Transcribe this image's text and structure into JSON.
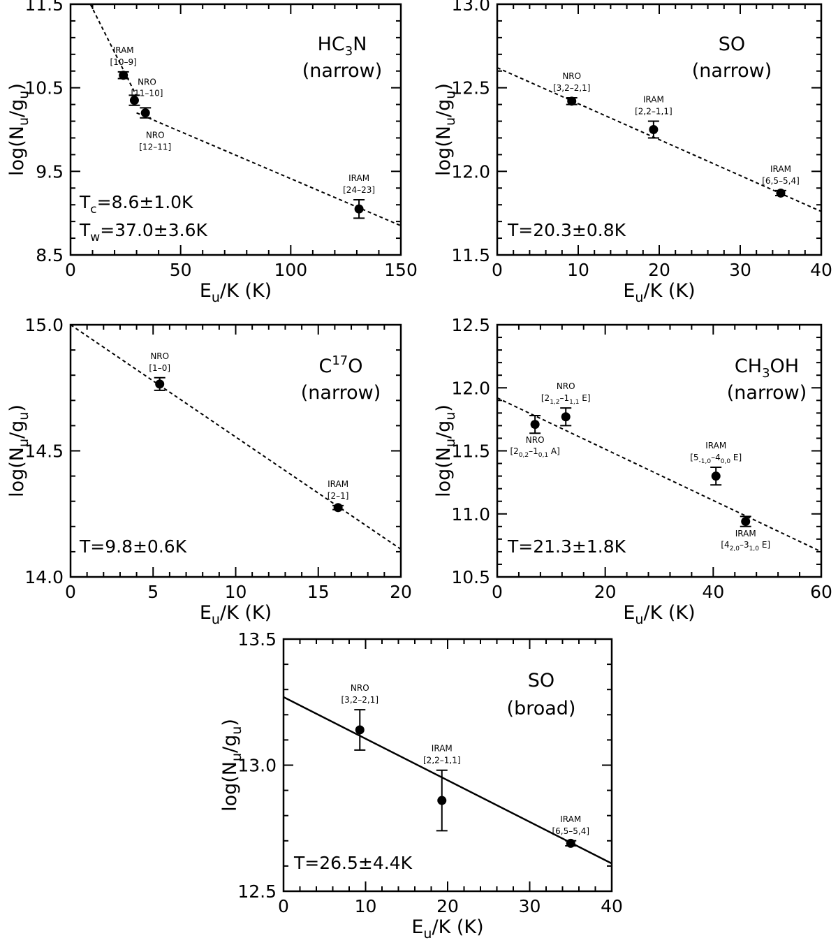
{
  "chart_data": [
    {
      "type": "scatter",
      "molecule": {
        "main": "HC",
        "sub": "3",
        "rest": "N"
      },
      "component": "(narrow)",
      "xlabel": {
        "main": "E",
        "sub": "u",
        "rest": "/K (K)"
      },
      "ylabel": {
        "pre": "log(N",
        "sub1": "u",
        "mid": "/g",
        "sub2": "u",
        "post": ")"
      },
      "xlim": [
        0,
        150
      ],
      "ylim": [
        8.5,
        11.5
      ],
      "xticks": [
        0,
        50,
        100,
        150
      ],
      "xtick_labels": [
        "0",
        "50",
        "100",
        "150"
      ],
      "yticks": [
        8.5,
        9.5,
        10.5,
        11.5
      ],
      "ytick_labels": [
        "8.5",
        "9.5",
        "10.5",
        "11.5"
      ],
      "temps": [
        {
          "main": "T",
          "sub": "c",
          "rest": "=8.6±1.0K"
        },
        {
          "main": "T",
          "sub": "w",
          "rest": "=37.0±3.6K"
        }
      ],
      "fits": [
        {
          "x": [
            9,
            30
          ],
          "y": [
            11.5,
            10.4
          ],
          "style": "dashed"
        },
        {
          "x": [
            30,
            150
          ],
          "y": [
            10.2,
            8.85
          ],
          "style": "dashed"
        }
      ],
      "points": [
        {
          "x": 24,
          "y": 10.65,
          "err": 0.04,
          "label": {
            "top": "IRAM",
            "bottom": "[10–9]"
          }
        },
        {
          "x": 29,
          "y": 10.35,
          "err": 0.06,
          "label": {
            "top": "NRO",
            "bottom": "[11–10]"
          }
        },
        {
          "x": 34,
          "y": 10.2,
          "err": 0.06,
          "label": {
            "top": "NRO",
            "bottom": "[12–11]"
          }
        },
        {
          "x": 131,
          "y": 9.05,
          "err": 0.11,
          "label": {
            "top": "IRAM",
            "bottom": "[24–23]"
          }
        }
      ]
    },
    {
      "type": "scatter",
      "molecule": {
        "main": "SO",
        "sub": "",
        "rest": ""
      },
      "component": "(narrow)",
      "xlabel": {
        "main": "E",
        "sub": "u",
        "rest": "/K (K)"
      },
      "ylabel": {
        "pre": "log(N",
        "sub1": "u",
        "mid": "/g",
        "sub2": "u",
        "post": ")"
      },
      "xlim": [
        0,
        40
      ],
      "ylim": [
        11.5,
        13.0
      ],
      "xticks": [
        0,
        10,
        20,
        30,
        40
      ],
      "xtick_labels": [
        "0",
        "10",
        "20",
        "30",
        "40"
      ],
      "yticks": [
        11.5,
        12.0,
        12.5,
        13.0
      ],
      "ytick_labels": [
        "11.5",
        "12.0",
        "12.5",
        "13.0"
      ],
      "temps": [
        {
          "main": "T",
          "sub": "",
          "rest": "=20.3±0.8K"
        }
      ],
      "fits": [
        {
          "x": [
            0,
            40
          ],
          "y": [
            12.62,
            11.76
          ],
          "style": "dashed"
        }
      ],
      "points": [
        {
          "x": 9.2,
          "y": 12.42,
          "err": 0.02,
          "label": {
            "top": "NRO",
            "bottom": "[3,2–2,1]"
          }
        },
        {
          "x": 19.3,
          "y": 12.25,
          "err": 0.05,
          "label": {
            "top": "IRAM",
            "bottom": "[2,2–1,1]"
          }
        },
        {
          "x": 35,
          "y": 11.87,
          "err": 0.015,
          "label": {
            "top": "IRAM",
            "bottom": "[6,5–5,4]"
          }
        }
      ]
    },
    {
      "type": "scatter",
      "molecule": {
        "main": "C",
        "sup": "17",
        "rest": "O"
      },
      "component": "(narrow)",
      "xlabel": {
        "main": "E",
        "sub": "u",
        "rest": "/K (K)"
      },
      "ylabel": {
        "pre": "log(N",
        "sub1": "u",
        "mid": "/g",
        "sub2": "u",
        "post": ")"
      },
      "xlim": [
        0,
        20
      ],
      "ylim": [
        14.0,
        15.0
      ],
      "xticks": [
        0,
        5,
        10,
        15,
        20
      ],
      "xtick_labels": [
        "0",
        "5",
        "10",
        "15",
        "20"
      ],
      "yticks": [
        14.0,
        14.5,
        15.0
      ],
      "ytick_labels": [
        "14.0",
        "14.5",
        "15.0"
      ],
      "temps": [
        {
          "main": "T",
          "sub": "",
          "rest": "=9.8±0.6K"
        }
      ],
      "fits": [
        {
          "x": [
            0,
            20
          ],
          "y": [
            15.0,
            14.11
          ],
          "style": "dashed"
        }
      ],
      "points": [
        {
          "x": 5.4,
          "y": 14.765,
          "err": 0.025,
          "label": {
            "top": "NRO",
            "bottom": "[1–0]"
          }
        },
        {
          "x": 16.2,
          "y": 14.275,
          "err": 0.008,
          "label": {
            "top": "IRAM",
            "bottom": "[2–1]"
          }
        }
      ]
    },
    {
      "type": "scatter",
      "molecule": {
        "main": "CH",
        "sub": "3",
        "rest": "OH"
      },
      "component": "(narrow)",
      "xlabel": {
        "main": "E",
        "sub": "u",
        "rest": "/K (K)"
      },
      "ylabel": {
        "pre": "log(N",
        "sub1": "u",
        "mid": "/g",
        "sub2": "u",
        "post": ")"
      },
      "xlim": [
        0,
        60
      ],
      "ylim": [
        10.5,
        12.5
      ],
      "xticks": [
        0,
        20,
        40,
        60
      ],
      "xtick_labels": [
        "0",
        "20",
        "40",
        "60"
      ],
      "yticks": [
        10.5,
        11.0,
        11.5,
        12.0,
        12.5
      ],
      "ytick_labels": [
        "10.5",
        "11.0",
        "11.5",
        "12.0",
        "12.5"
      ],
      "temps": [
        {
          "main": "T",
          "sub": "",
          "rest": "=21.3±1.8K"
        }
      ],
      "fits": [
        {
          "x": [
            0,
            60
          ],
          "y": [
            11.92,
            10.7
          ],
          "style": "dashed"
        }
      ],
      "points": [
        {
          "x": 7,
          "y": 11.71,
          "err": 0.07,
          "label": {
            "position": "below",
            "top": "NRO",
            "bottom": "[2(0,2)–1(0,1) A]"
          }
        },
        {
          "x": 12.7,
          "y": 11.77,
          "err": 0.07,
          "label": {
            "position": "above",
            "top": "NRO",
            "bottom": "[2(1,2)–1(1,1) E]"
          }
        },
        {
          "x": 40.5,
          "y": 11.3,
          "err": 0.07,
          "label": {
            "position": "above",
            "top": "IRAM",
            "bottom": "[5(-1,0)–4(0,0) E]"
          }
        },
        {
          "x": 46,
          "y": 10.94,
          "err": 0.04,
          "label": {
            "position": "below",
            "top": "IRAM",
            "bottom": "[4(2,0)–3(1,0) E]"
          }
        }
      ]
    },
    {
      "type": "scatter",
      "molecule": {
        "main": "SO",
        "sub": "",
        "rest": ""
      },
      "component": "(broad)",
      "xlabel": {
        "main": "E",
        "sub": "u",
        "rest": "/K (K)"
      },
      "ylabel": {
        "pre": "log(N",
        "sub1": "u",
        "mid": "/g",
        "sub2": "u",
        "post": ")"
      },
      "xlim": [
        0,
        40
      ],
      "ylim": [
        12.5,
        13.5
      ],
      "xticks": [
        0,
        10,
        20,
        30,
        40
      ],
      "xtick_labels": [
        "0",
        "10",
        "20",
        "30",
        "40"
      ],
      "yticks": [
        12.5,
        13.0,
        13.5
      ],
      "ytick_labels": [
        "12.5",
        "13.0",
        "13.5"
      ],
      "temps": [
        {
          "main": "T",
          "sub": "",
          "rest": "=26.5±4.4K"
        }
      ],
      "fits": [
        {
          "x": [
            0,
            40
          ],
          "y": [
            13.27,
            12.61
          ],
          "style": "solid"
        }
      ],
      "points": [
        {
          "x": 9.3,
          "y": 13.14,
          "err": 0.08,
          "label": {
            "top": "NRO",
            "bottom": "[3,2–2,1]"
          }
        },
        {
          "x": 19.3,
          "y": 12.86,
          "err": 0.12,
          "label": {
            "top": "IRAM",
            "bottom": "[2,2–1,1]"
          }
        },
        {
          "x": 35,
          "y": 12.69,
          "err": 0.01,
          "label": {
            "top": "IRAM",
            "bottom": "[6,5–5,4]"
          }
        }
      ]
    }
  ]
}
